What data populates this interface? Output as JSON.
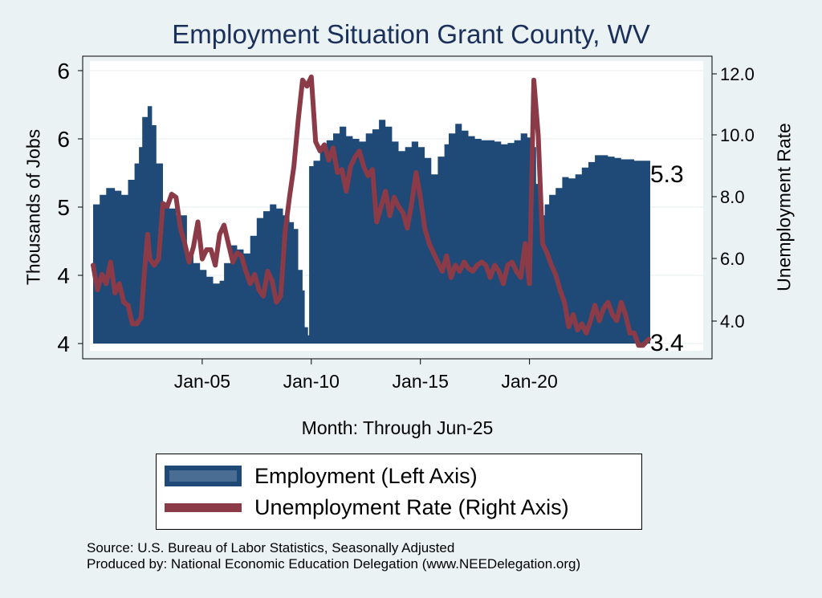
{
  "title": "Employment Situation Grant  County, WV",
  "ylabel_left": "Thousands of Jobs",
  "ylabel_right": "Unemployment Rate",
  "xlabel": "Month: Through Jun-25",
  "end_labels": {
    "employment": "5.3",
    "unemployment": "3.4"
  },
  "legend": {
    "employment": "Employment (Left Axis)",
    "unemployment": "Unemployment Rate (Right Axis)"
  },
  "source_line1": "Source: U.S. Bureau of Labor Statistics, Seasonally Adjusted",
  "source_line2": "Produced by: National Economic Education Delegation (www.NEEDelegation.org)",
  "colors": {
    "background": "#eaf2f3",
    "plot": "#ffffff",
    "bar": "#1f4a77",
    "line": "#8b3a47",
    "title": "#1a2f5a"
  },
  "chart_data": {
    "type": "bar",
    "title": "Employment Situation Grant  County, WV",
    "xlabel": "Month: Through Jun-25",
    "x_tick_labels": [
      "Jan-05",
      "Jan-10",
      "Jan-15",
      "Jan-20"
    ],
    "x_tick_dates": [
      2005.0,
      2010.0,
      2015.0,
      2020.0
    ],
    "x_range": [
      2000.0,
      2025.46
    ],
    "left_axis": {
      "label": "Thousands of Jobs",
      "tick_labels": [
        "4",
        "4",
        "5",
        "6",
        "6"
      ],
      "range": [
        3.96,
        5.96
      ]
    },
    "right_axis": {
      "label": "Unemployment Rate",
      "tick_labels": [
        "4.0",
        "6.0",
        "8.0",
        "10.0",
        "12.0"
      ],
      "range": [
        3.0,
        12.0
      ]
    },
    "grid": true,
    "legend_position": "bottom",
    "series": [
      {
        "name": "Employment (Left Axis)",
        "axis": "left",
        "type": "bar",
        "points": [
          [
            2000.0,
            4.98
          ],
          [
            2000.3,
            5.05
          ],
          [
            2000.6,
            5.1
          ],
          [
            2001.0,
            5.08
          ],
          [
            2001.3,
            5.05
          ],
          [
            2001.6,
            5.16
          ],
          [
            2001.9,
            5.28
          ],
          [
            2002.1,
            5.4
          ],
          [
            2002.25,
            5.62
          ],
          [
            2002.5,
            5.7
          ],
          [
            2002.7,
            5.56
          ],
          [
            2002.9,
            5.28
          ],
          [
            2003.2,
            4.98
          ],
          [
            2003.5,
            4.95
          ],
          [
            2003.8,
            4.9
          ],
          [
            2004.0,
            4.9
          ],
          [
            2004.3,
            4.62
          ],
          [
            2004.6,
            4.55
          ],
          [
            2004.9,
            4.5
          ],
          [
            2005.2,
            4.45
          ],
          [
            2005.5,
            4.4
          ],
          [
            2005.8,
            4.42
          ],
          [
            2006.0,
            4.55
          ],
          [
            2006.3,
            4.68
          ],
          [
            2006.6,
            4.65
          ],
          [
            2006.9,
            4.62
          ],
          [
            2007.2,
            4.75
          ],
          [
            2007.5,
            4.88
          ],
          [
            2007.8,
            4.93
          ],
          [
            2008.1,
            4.98
          ],
          [
            2008.4,
            4.95
          ],
          [
            2008.7,
            4.9
          ],
          [
            2009.0,
            4.85
          ],
          [
            2009.2,
            4.8
          ],
          [
            2009.4,
            4.5
          ],
          [
            2009.6,
            4.35
          ],
          [
            2009.7,
            4.08
          ],
          [
            2009.85,
            4.02
          ],
          [
            2009.9,
            5.26
          ],
          [
            2010.1,
            5.3
          ],
          [
            2010.4,
            5.4
          ],
          [
            2010.7,
            5.45
          ],
          [
            2011.0,
            5.5
          ],
          [
            2011.3,
            5.55
          ],
          [
            2011.6,
            5.48
          ],
          [
            2011.9,
            5.46
          ],
          [
            2012.2,
            5.44
          ],
          [
            2012.5,
            5.5
          ],
          [
            2012.8,
            5.53
          ],
          [
            2013.1,
            5.6
          ],
          [
            2013.4,
            5.55
          ],
          [
            2013.7,
            5.44
          ],
          [
            2014.0,
            5.37
          ],
          [
            2014.3,
            5.4
          ],
          [
            2014.6,
            5.44
          ],
          [
            2014.9,
            5.4
          ],
          [
            2015.2,
            5.32
          ],
          [
            2015.5,
            5.2
          ],
          [
            2015.8,
            5.33
          ],
          [
            2016.1,
            5.42
          ],
          [
            2016.3,
            5.5
          ],
          [
            2016.6,
            5.57
          ],
          [
            2016.9,
            5.52
          ],
          [
            2017.2,
            5.48
          ],
          [
            2017.5,
            5.46
          ],
          [
            2017.8,
            5.45
          ],
          [
            2018.1,
            5.45
          ],
          [
            2018.4,
            5.44
          ],
          [
            2018.7,
            5.42
          ],
          [
            2019.0,
            5.43
          ],
          [
            2019.3,
            5.45
          ],
          [
            2019.6,
            5.5
          ],
          [
            2019.9,
            5.47
          ],
          [
            2020.1,
            5.4
          ],
          [
            2020.3,
            5.13
          ],
          [
            2020.5,
            4.9
          ],
          [
            2020.7,
            4.98
          ],
          [
            2020.9,
            5.05
          ],
          [
            2021.2,
            5.1
          ],
          [
            2021.5,
            5.18
          ],
          [
            2021.8,
            5.17
          ],
          [
            2022.1,
            5.2
          ],
          [
            2022.4,
            5.25
          ],
          [
            2022.7,
            5.29
          ],
          [
            2023.0,
            5.34
          ],
          [
            2023.3,
            5.34
          ],
          [
            2023.6,
            5.33
          ],
          [
            2023.9,
            5.32
          ],
          [
            2024.2,
            5.31
          ],
          [
            2024.5,
            5.31
          ],
          [
            2024.8,
            5.3
          ],
          [
            2025.1,
            5.3
          ],
          [
            2025.46,
            5.3
          ]
        ]
      },
      {
        "name": "Unemployment Rate (Right Axis)",
        "axis": "right",
        "type": "line",
        "points": [
          [
            2000.0,
            5.8
          ],
          [
            2000.2,
            5.0
          ],
          [
            2000.4,
            5.5
          ],
          [
            2000.6,
            5.2
          ],
          [
            2000.8,
            5.9
          ],
          [
            2001.0,
            4.9
          ],
          [
            2001.2,
            5.2
          ],
          [
            2001.4,
            4.6
          ],
          [
            2001.6,
            4.5
          ],
          [
            2001.8,
            3.9
          ],
          [
            2002.0,
            3.9
          ],
          [
            2002.2,
            4.1
          ],
          [
            2002.4,
            6.0
          ],
          [
            2002.5,
            6.8
          ],
          [
            2002.6,
            6.0
          ],
          [
            2002.8,
            5.8
          ],
          [
            2003.0,
            6.0
          ],
          [
            2003.2,
            7.8
          ],
          [
            2003.4,
            7.7
          ],
          [
            2003.6,
            8.1
          ],
          [
            2003.8,
            8.0
          ],
          [
            2003.9,
            7.5
          ],
          [
            2004.0,
            7.0
          ],
          [
            2004.2,
            6.5
          ],
          [
            2004.4,
            5.9
          ],
          [
            2004.6,
            6.4
          ],
          [
            2004.8,
            7.2
          ],
          [
            2005.0,
            6.0
          ],
          [
            2005.2,
            6.3
          ],
          [
            2005.4,
            6.3
          ],
          [
            2005.6,
            5.8
          ],
          [
            2005.8,
            6.8
          ],
          [
            2006.0,
            7.1
          ],
          [
            2006.2,
            6.5
          ],
          [
            2006.4,
            5.9
          ],
          [
            2006.6,
            6.2
          ],
          [
            2006.8,
            6.1
          ],
          [
            2007.0,
            5.6
          ],
          [
            2007.2,
            5.2
          ],
          [
            2007.4,
            5.5
          ],
          [
            2007.6,
            5.0
          ],
          [
            2007.8,
            4.8
          ],
          [
            2008.0,
            5.6
          ],
          [
            2008.2,
            5.3
          ],
          [
            2008.4,
            4.6
          ],
          [
            2008.6,
            4.8
          ],
          [
            2008.8,
            6.9
          ],
          [
            2009.0,
            8.0
          ],
          [
            2009.2,
            9.0
          ],
          [
            2009.4,
            10.5
          ],
          [
            2009.6,
            11.8
          ],
          [
            2009.8,
            11.6
          ],
          [
            2010.0,
            11.9
          ],
          [
            2010.2,
            9.8
          ],
          [
            2010.4,
            9.5
          ],
          [
            2010.6,
            9.7
          ],
          [
            2010.8,
            9.2
          ],
          [
            2011.0,
            9.6
          ],
          [
            2011.2,
            8.8
          ],
          [
            2011.4,
            8.9
          ],
          [
            2011.6,
            8.2
          ],
          [
            2011.8,
            9.0
          ],
          [
            2012.0,
            9.3
          ],
          [
            2012.2,
            9.5
          ],
          [
            2012.4,
            9.0
          ],
          [
            2012.6,
            8.7
          ],
          [
            2012.8,
            8.9
          ],
          [
            2013.0,
            7.2
          ],
          [
            2013.2,
            7.7
          ],
          [
            2013.4,
            8.2
          ],
          [
            2013.6,
            7.4
          ],
          [
            2013.8,
            8.0
          ],
          [
            2014.0,
            7.7
          ],
          [
            2014.2,
            7.5
          ],
          [
            2014.4,
            7.0
          ],
          [
            2014.6,
            7.8
          ],
          [
            2014.8,
            8.8
          ],
          [
            2015.0,
            8.0
          ],
          [
            2015.2,
            7.0
          ],
          [
            2015.4,
            6.5
          ],
          [
            2015.6,
            6.2
          ],
          [
            2015.8,
            5.9
          ],
          [
            2016.0,
            5.6
          ],
          [
            2016.2,
            6.1
          ],
          [
            2016.4,
            5.4
          ],
          [
            2016.6,
            5.8
          ],
          [
            2016.8,
            5.6
          ],
          [
            2017.0,
            5.9
          ],
          [
            2017.2,
            5.7
          ],
          [
            2017.4,
            5.6
          ],
          [
            2017.6,
            5.8
          ],
          [
            2017.8,
            5.9
          ],
          [
            2018.0,
            5.8
          ],
          [
            2018.2,
            5.4
          ],
          [
            2018.4,
            5.8
          ],
          [
            2018.6,
            5.6
          ],
          [
            2018.8,
            5.2
          ],
          [
            2019.0,
            5.8
          ],
          [
            2019.2,
            5.9
          ],
          [
            2019.4,
            5.6
          ],
          [
            2019.6,
            5.4
          ],
          [
            2019.8,
            6.5
          ],
          [
            2020.0,
            5.2
          ],
          [
            2020.2,
            11.8
          ],
          [
            2020.4,
            10.0
          ],
          [
            2020.6,
            6.5
          ],
          [
            2020.8,
            6.2
          ],
          [
            2021.0,
            5.8
          ],
          [
            2021.2,
            5.5
          ],
          [
            2021.4,
            5.0
          ],
          [
            2021.6,
            4.6
          ],
          [
            2021.8,
            3.8
          ],
          [
            2022.0,
            4.2
          ],
          [
            2022.2,
            3.7
          ],
          [
            2022.4,
            3.9
          ],
          [
            2022.6,
            3.6
          ],
          [
            2022.8,
            4.0
          ],
          [
            2023.0,
            4.5
          ],
          [
            2023.2,
            4.0
          ],
          [
            2023.4,
            4.4
          ],
          [
            2023.6,
            4.6
          ],
          [
            2023.8,
            4.2
          ],
          [
            2024.0,
            4.0
          ],
          [
            2024.2,
            4.6
          ],
          [
            2024.4,
            4.2
          ],
          [
            2024.6,
            3.6
          ],
          [
            2024.8,
            3.6
          ],
          [
            2025.0,
            3.2
          ],
          [
            2025.2,
            3.2
          ],
          [
            2025.46,
            3.4
          ]
        ]
      }
    ]
  }
}
